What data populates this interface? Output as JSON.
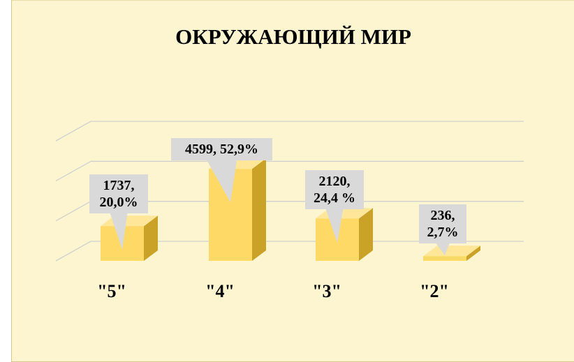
{
  "chart_data": {
    "type": "bar3d",
    "title": "ОКРУЖАЮЩИЙ МИР",
    "categories": [
      "\"5\"",
      "\"4\"",
      "\"3\"",
      "\"2\""
    ],
    "values": [
      1737,
      4599,
      2120,
      236
    ],
    "value_labels": [
      "1737, 20,0%",
      "4599, 52,9%",
      "2120, 24,4 %",
      "236, 2,7%"
    ],
    "color": "#ffd966",
    "ylim": [
      0,
      6000
    ],
    "yticks": [
      0,
      2000,
      4000,
      6000
    ],
    "grid": true
  }
}
